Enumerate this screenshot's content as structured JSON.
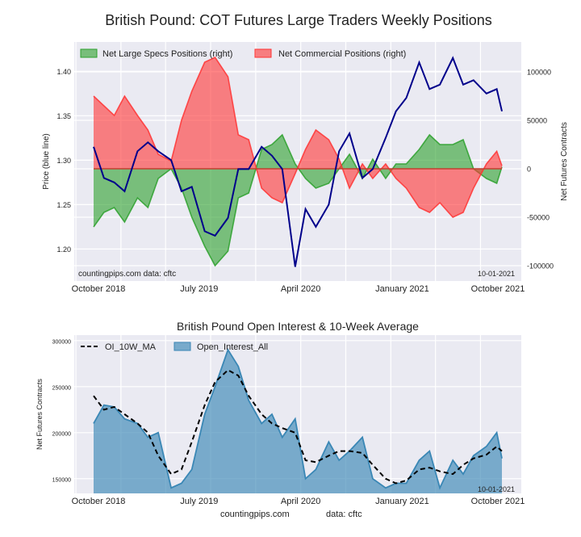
{
  "title": "British Pound: COT Futures Large Traders Weekly Positions",
  "footer": {
    "site": "countingpips.com",
    "source": "data: cftc"
  },
  "colors": {
    "plot_bg": "#eaeaf2",
    "grid": "#ffffff",
    "specs": "#2ca02c",
    "commercial": "#ff3333",
    "price": "#00008b",
    "oi": "#3a87b5",
    "ma": "#000000"
  },
  "chart_data": [
    {
      "type": "area",
      "title": "",
      "ylabel": "Price (blue line)",
      "ylabel_right": "Net Futures Contracts",
      "annotation_left": "countingpips.com  data: cftc",
      "annotation_right": "10-01-2021",
      "ylim": [
        1.164,
        1.433
      ],
      "ylim_right": [
        -115800,
        130800
      ],
      "yticks": [
        "1.20",
        "1.25",
        "1.30",
        "1.35",
        "1.40"
      ],
      "yticks_right": [
        "-100000",
        "-50000",
        "0",
        "50000",
        "100000"
      ],
      "xticks": [
        "October 2018",
        "July 2019",
        "April 2020",
        "January 2021",
        "October 2021"
      ],
      "xtick_dates": [
        "2018-10-01",
        "2019-07-01",
        "2020-04-01",
        "2021-01-01",
        "2021-10-01"
      ],
      "grid": true,
      "legend_placement": "top-left",
      "x": [
        "2018-09-18",
        "2018-10-16",
        "2018-11-13",
        "2018-12-11",
        "2019-01-15",
        "2019-02-12",
        "2019-03-12",
        "2019-04-16",
        "2019-05-14",
        "2019-06-11",
        "2019-07-16",
        "2019-08-13",
        "2019-09-17",
        "2019-10-15",
        "2019-11-12",
        "2019-12-17",
        "2020-01-14",
        "2020-02-11",
        "2020-03-17",
        "2020-04-14",
        "2020-05-12",
        "2020-06-16",
        "2020-07-14",
        "2020-08-11",
        "2020-09-15",
        "2020-10-13",
        "2020-11-17",
        "2020-12-15",
        "2021-01-12",
        "2021-02-16",
        "2021-03-16",
        "2021-04-13",
        "2021-05-18",
        "2021-06-15",
        "2021-07-13",
        "2021-08-17",
        "2021-09-14",
        "2021-09-28"
      ],
      "series": [
        {
          "name": "Net Large Specs Positions (right)",
          "axis": "right",
          "style": "fill",
          "values": [
            -60000,
            -45000,
            -40000,
            -55000,
            -30000,
            -40000,
            -10000,
            0,
            -20000,
            -50000,
            -80000,
            -100000,
            -85000,
            -30000,
            -25000,
            20000,
            25000,
            35000,
            5000,
            -10000,
            -20000,
            -15000,
            0,
            15000,
            -10000,
            10000,
            -10000,
            5000,
            5000,
            20000,
            35000,
            25000,
            25000,
            30000,
            0,
            -10000,
            -15000,
            2000
          ]
        },
        {
          "name": "Net Commercial Positions (right)",
          "axis": "right",
          "style": "fill",
          "values": [
            75000,
            65000,
            55000,
            75000,
            55000,
            40000,
            15000,
            8000,
            50000,
            80000,
            110000,
            115000,
            95000,
            35000,
            30000,
            -20000,
            -30000,
            -35000,
            -5000,
            20000,
            40000,
            30000,
            10000,
            -20000,
            5000,
            -10000,
            5000,
            -10000,
            -20000,
            -40000,
            -45000,
            -35000,
            -50000,
            -45000,
            -20000,
            5000,
            18000,
            3000
          ]
        },
        {
          "axis": "left",
          "style": "line",
          "values": [
            1.315,
            1.28,
            1.275,
            1.265,
            1.31,
            1.32,
            1.31,
            1.3,
            1.265,
            1.27,
            1.22,
            1.215,
            1.235,
            1.29,
            1.29,
            1.315,
            1.305,
            1.29,
            1.18,
            1.245,
            1.225,
            1.25,
            1.31,
            1.33,
            1.28,
            1.29,
            1.325,
            1.355,
            1.37,
            1.41,
            1.38,
            1.385,
            1.415,
            1.385,
            1.39,
            1.375,
            1.38,
            1.355
          ]
        }
      ]
    },
    {
      "type": "area",
      "title": "British Pound Open Interest & 10-Week Average",
      "ylabel": "Net Futures Contracts",
      "annotation_right": "10-01-2021",
      "ylim": [
        134000,
        306000
      ],
      "yticks": [
        "150000",
        "200000",
        "250000",
        "300000"
      ],
      "xticks": [
        "October 2018",
        "July 2019",
        "April 2020",
        "January 2021",
        "October 2021"
      ],
      "xtick_dates": [
        "2018-10-01",
        "2019-07-01",
        "2020-04-01",
        "2021-01-01",
        "2021-10-01"
      ],
      "grid": true,
      "legend_placement": "top-left",
      "series": [
        {
          "name": "OI_10W_MA",
          "style": "dashed-line",
          "values": [
            240000,
            225000,
            228000,
            220000,
            210000,
            200000,
            175000,
            155000,
            160000,
            190000,
            230000,
            255000,
            268000,
            262000,
            240000,
            220000,
            210000,
            205000,
            200000,
            170000,
            168000,
            175000,
            180000,
            180000,
            178000,
            165000,
            150000,
            145000,
            148000,
            160000,
            162000,
            158000,
            155000,
            165000,
            172000,
            176000,
            185000,
            180000
          ]
        },
        {
          "name": "Open_Interest_All",
          "style": "fill",
          "values": [
            210000,
            230000,
            228000,
            215000,
            210000,
            195000,
            200000,
            140000,
            145000,
            160000,
            220000,
            250000,
            290000,
            272000,
            235000,
            210000,
            220000,
            195000,
            215000,
            150000,
            160000,
            190000,
            170000,
            180000,
            195000,
            150000,
            140000,
            145000,
            145000,
            170000,
            180000,
            140000,
            170000,
            155000,
            175000,
            185000,
            200000,
            172000
          ]
        }
      ]
    }
  ]
}
